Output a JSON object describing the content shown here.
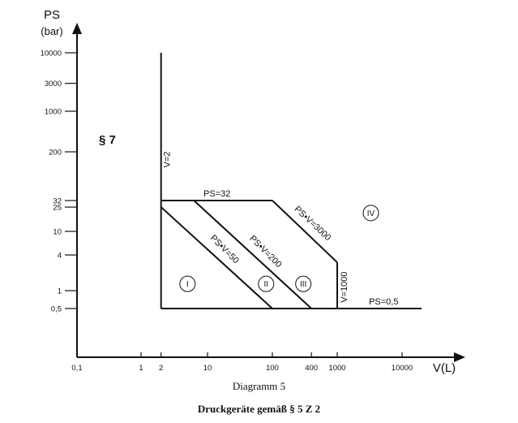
{
  "chart_data": {
    "type": "line",
    "x_scale": "log",
    "y_scale": "log",
    "xlabel": "V(L)",
    "ylabel": "PS",
    "ylabel_unit": "(bar)",
    "x_ticks": [
      "0,1",
      "1",
      "2",
      "10",
      "100",
      "400",
      "1000",
      "10000"
    ],
    "y_ticks": [
      "10000",
      "3000",
      "1000",
      "200",
      "32",
      "25",
      "10",
      "4",
      "1",
      "0,5"
    ],
    "limit_lines": [
      {
        "name": "V=2",
        "points": [
          [
            2,
            0.5
          ],
          [
            2,
            10000
          ]
        ]
      },
      {
        "name": "PS=32",
        "points": [
          [
            2,
            32
          ],
          [
            100,
            32
          ]
        ]
      },
      {
        "name": "PS•V=50",
        "points": [
          [
            2,
            25
          ],
          [
            100,
            0.5
          ]
        ]
      },
      {
        "name": "PS•V=200",
        "points": [
          [
            6.25,
            32
          ],
          [
            400,
            0.5
          ]
        ]
      },
      {
        "name": "PS•V=3000",
        "points": [
          [
            100,
            32
          ],
          [
            1000,
            3
          ]
        ]
      },
      {
        "name": "V=1000",
        "points": [
          [
            1000,
            3
          ],
          [
            1000,
            0.5
          ]
        ]
      },
      {
        "name": "PS=0,5",
        "points": [
          [
            2,
            0.5
          ],
          [
            20000,
            0.5
          ]
        ]
      }
    ],
    "regions": [
      "I",
      "II",
      "III",
      "IV"
    ],
    "annotation": "§ 7",
    "caption": "Diagramm 5",
    "subcaption": "Druckgeräte gemäß § 5 Z 2"
  }
}
